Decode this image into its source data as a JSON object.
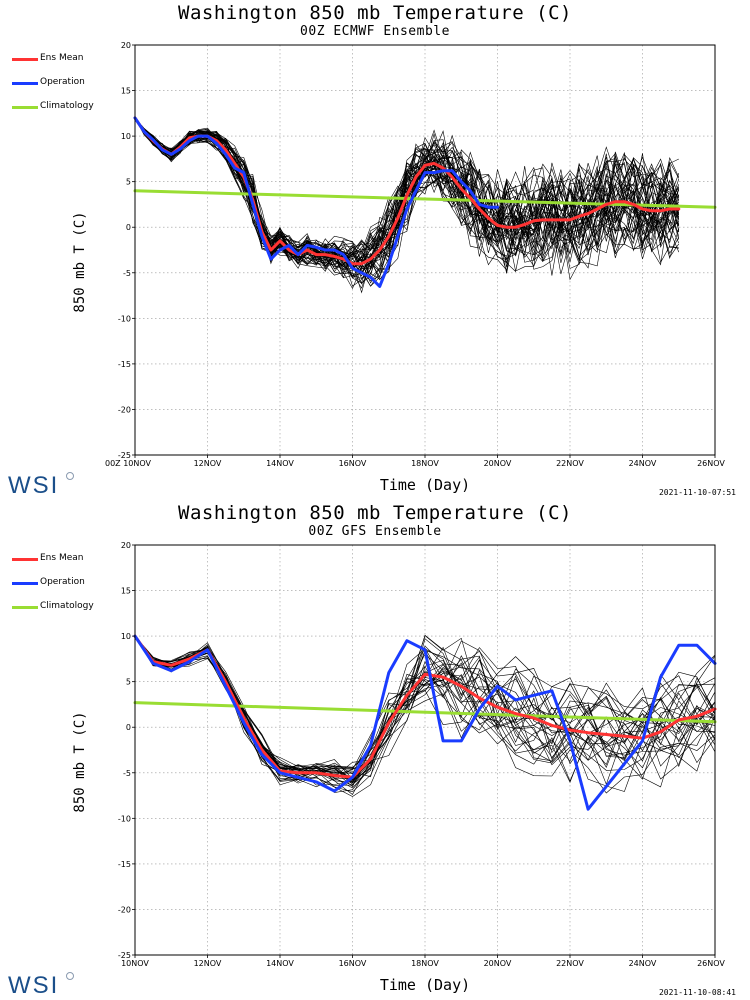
{
  "logo": {
    "text": "WSI"
  },
  "colors": {
    "ens_mean": "#ff3333",
    "operation": "#1a3cff",
    "climatology": "#99dd33",
    "members": "#000000",
    "grid": "#999999"
  },
  "chart_data": [
    {
      "type": "line",
      "title": "Washington 850 mb Temperature (C)",
      "subtitle": "00Z ECMWF Ensemble",
      "xlabel": "Time (Day)",
      "ylabel": "850 mb T (C)",
      "timestamp": "2021-11-10-07:51",
      "xlim": [
        10,
        26
      ],
      "ylim": [
        -25,
        20
      ],
      "grid": true,
      "legend_placement": "left",
      "x_ticks": [
        {
          "x": 10,
          "label": "00Z 10NOV"
        },
        {
          "x": 12,
          "label": "12NOV"
        },
        {
          "x": 14,
          "label": "14NOV"
        },
        {
          "x": 16,
          "label": "16NOV"
        },
        {
          "x": 18,
          "label": "18NOV"
        },
        {
          "x": 20,
          "label": "20NOV"
        },
        {
          "x": 22,
          "label": "22NOV"
        },
        {
          "x": 24,
          "label": "24NOV"
        },
        {
          "x": 26,
          "label": "26NOV"
        }
      ],
      "y_ticks": [
        20,
        15,
        10,
        5,
        0,
        -5,
        -10,
        -15,
        -20,
        -25
      ],
      "legend": [
        "Ens Mean",
        "Operation",
        "Climatology"
      ],
      "members_ensemble": {
        "count": 50,
        "x": [
          10,
          10.25,
          10.5,
          10.75,
          11,
          11.25,
          11.5,
          11.75,
          12,
          12.25,
          12.5,
          12.75,
          13,
          13.25,
          13.5,
          13.75,
          14,
          14.25,
          14.5,
          14.75,
          15,
          15.25,
          15.5,
          15.75,
          16,
          16.25,
          16.5,
          16.75,
          17,
          17.25,
          17.5,
          17.75,
          18,
          18.25,
          18.5,
          18.75,
          19,
          19.25,
          19.5,
          19.75,
          20,
          20.25,
          20.5,
          20.75,
          21,
          21.25,
          21.5,
          21.75,
          22,
          22.25,
          22.5,
          22.75,
          23,
          23.25,
          23.5,
          23.75,
          24,
          24.25,
          24.5,
          24.75,
          25
        ],
        "mean": [
          12,
          10.5,
          9.5,
          8.6,
          8,
          8.8,
          9.8,
          10,
          10,
          9.5,
          8.5,
          7,
          5.5,
          3,
          -0.5,
          -2.5,
          -1.5,
          -2.5,
          -3,
          -2.5,
          -3,
          -3,
          -3.2,
          -3.5,
          -4,
          -4,
          -3.5,
          -2.5,
          -1,
          1,
          3.5,
          5.5,
          6.8,
          7,
          6.5,
          5.5,
          4.2,
          3.2,
          2,
          1,
          0.2,
          0,
          0,
          0.3,
          0.7,
          0.8,
          0.8,
          0.8,
          0.8,
          1.2,
          1.5,
          2,
          2.5,
          2.8,
          2.8,
          2.5,
          2,
          1.8,
          1.8,
          2,
          2
        ],
        "spread": [
          0,
          0.4,
          0.6,
          0.7,
          0.8,
          0.8,
          0.8,
          0.8,
          0.9,
          1.2,
          1.5,
          2,
          2.5,
          3,
          2.5,
          1.8,
          1.6,
          1.6,
          1.6,
          1.8,
          1.8,
          2,
          2.2,
          2.4,
          2.8,
          3.2,
          3.8,
          4.2,
          4.5,
          4.5,
          4.2,
          3.8,
          3.6,
          3.8,
          4,
          4.5,
          5,
          5.5,
          5.8,
          6,
          6,
          6,
          6,
          6,
          6,
          6,
          6,
          6,
          6,
          6,
          6,
          6,
          6,
          6,
          6,
          6,
          6,
          6,
          6,
          6,
          6
        ]
      },
      "series": [
        {
          "name": "Ens Mean",
          "color": "#ff3333",
          "x": [
            10,
            10.25,
            10.5,
            10.75,
            11,
            11.25,
            11.5,
            11.75,
            12,
            12.25,
            12.5,
            12.75,
            13,
            13.25,
            13.5,
            13.75,
            14,
            14.25,
            14.5,
            14.75,
            15,
            15.25,
            15.5,
            15.75,
            16,
            16.25,
            16.5,
            16.75,
            17,
            17.25,
            17.5,
            17.75,
            18,
            18.25,
            18.5,
            18.75,
            19,
            19.25,
            19.5,
            19.75,
            20,
            20.25,
            20.5,
            20.75,
            21,
            21.25,
            21.5,
            21.75,
            22,
            22.25,
            22.5,
            22.75,
            23,
            23.25,
            23.5,
            23.75,
            24,
            24.25,
            24.5,
            24.75,
            25
          ],
          "y": [
            12,
            10.5,
            9.5,
            8.6,
            8,
            8.8,
            9.8,
            10,
            10,
            9.5,
            8.5,
            7,
            5.5,
            3,
            -0.5,
            -2.5,
            -1.5,
            -2.5,
            -3,
            -2.5,
            -3,
            -3,
            -3.2,
            -3.5,
            -4,
            -4,
            -3.5,
            -2.5,
            -1,
            1,
            3.5,
            5.5,
            6.8,
            7,
            6.5,
            5.5,
            4.2,
            3.2,
            2,
            1,
            0.2,
            0,
            0,
            0.3,
            0.7,
            0.8,
            0.8,
            0.8,
            0.8,
            1.2,
            1.5,
            2,
            2.5,
            2.8,
            2.8,
            2.5,
            2,
            1.8,
            1.8,
            2,
            2
          ]
        },
        {
          "name": "Operation",
          "color": "#1a3cff",
          "x": [
            10,
            10.25,
            10.5,
            10.75,
            11,
            11.25,
            11.5,
            11.75,
            12,
            12.25,
            12.5,
            12.75,
            13,
            13.25,
            13.5,
            13.75,
            14,
            14.25,
            14.5,
            14.75,
            15,
            15.25,
            15.5,
            15.75,
            16,
            16.25,
            16.5,
            16.75,
            17,
            17.25,
            17.5,
            17.75,
            18,
            18.25,
            18.5,
            18.75,
            19,
            19.25,
            19.5,
            19.75,
            20
          ],
          "y": [
            12,
            10.5,
            9.6,
            8.5,
            8,
            8.6,
            9.5,
            10,
            10,
            9.2,
            8,
            6.5,
            6,
            2.5,
            -1,
            -3.5,
            -2.5,
            -2,
            -3,
            -2,
            -2.2,
            -2.5,
            -2.5,
            -3,
            -4.5,
            -5,
            -5.5,
            -6.5,
            -4,
            -1,
            2,
            4,
            6,
            6,
            6.2,
            6.2,
            5,
            4,
            2.5,
            2.2,
            2.2
          ]
        },
        {
          "name": "Climatology",
          "color": "#99dd33",
          "x": [
            10,
            26
          ],
          "y": [
            4,
            2.2
          ]
        }
      ]
    },
    {
      "type": "line",
      "title": "Washington 850 mb Temperature (C)",
      "subtitle": "00Z GFS Ensemble",
      "xlabel": "Time (Day)",
      "ylabel": "850 mb T (C)",
      "timestamp": "2021-11-10-08:41",
      "xlim": [
        10,
        26
      ],
      "ylim": [
        -25,
        20
      ],
      "grid": true,
      "legend_placement": "left",
      "x_ticks": [
        {
          "x": 10,
          "label": "10NOV"
        },
        {
          "x": 12,
          "label": "12NOV"
        },
        {
          "x": 14,
          "label": "14NOV"
        },
        {
          "x": 16,
          "label": "16NOV"
        },
        {
          "x": 18,
          "label": "18NOV"
        },
        {
          "x": 20,
          "label": "20NOV"
        },
        {
          "x": 22,
          "label": "22NOV"
        },
        {
          "x": 24,
          "label": "24NOV"
        },
        {
          "x": 26,
          "label": "26NOV"
        }
      ],
      "y_ticks": [
        20,
        15,
        10,
        5,
        0,
        -5,
        -10,
        -15,
        -20,
        -25
      ],
      "legend": [
        "Ens Mean",
        "Operation",
        "Climatology"
      ],
      "members_ensemble": {
        "count": 30,
        "x": [
          10,
          10.5,
          11,
          11.5,
          12,
          12.5,
          13,
          13.5,
          14,
          14.5,
          15,
          15.5,
          16,
          16.5,
          17,
          17.5,
          18,
          18.5,
          19,
          19.5,
          20,
          20.5,
          21,
          21.5,
          22,
          22.5,
          23,
          23.5,
          24,
          24.5,
          25,
          25.5,
          26
        ],
        "mean": [
          10,
          7.2,
          6.8,
          7.5,
          8.5,
          5,
          1,
          -2.5,
          -4.8,
          -5,
          -5,
          -5.3,
          -5.5,
          -3.5,
          0.5,
          3.5,
          5.8,
          5.5,
          4.5,
          3.2,
          2.2,
          1.5,
          1,
          0.2,
          -0.3,
          -0.6,
          -0.8,
          -1,
          -1.2,
          -0.5,
          0.8,
          1.2,
          2
        ],
        "spread": [
          0,
          0.5,
          0.7,
          0.8,
          0.9,
          1.2,
          1.5,
          1.6,
          1.6,
          1.6,
          1.6,
          1.8,
          2,
          3,
          4,
          4.5,
          4.5,
          5,
          5.5,
          6,
          6,
          6,
          6,
          6,
          6,
          6,
          6,
          6,
          6,
          6,
          6,
          6,
          6
        ]
      },
      "series": [
        {
          "name": "Ens Mean",
          "color": "#ff3333",
          "x": [
            10,
            10.5,
            11,
            11.5,
            12,
            12.5,
            13,
            13.5,
            14,
            14.5,
            15,
            15.5,
            16,
            16.5,
            17,
            17.5,
            18,
            18.5,
            19,
            19.5,
            20,
            20.5,
            21,
            21.5,
            22,
            22.5,
            23,
            23.5,
            24,
            24.5,
            25,
            25.5,
            26
          ],
          "y": [
            10,
            7.2,
            6.8,
            7.5,
            8.5,
            5,
            1,
            -2.5,
            -4.8,
            -5,
            -5,
            -5.3,
            -5.5,
            -3.5,
            0.5,
            3.5,
            5.8,
            5.5,
            4.5,
            3.2,
            2.2,
            1.5,
            1,
            0.2,
            -0.3,
            -0.6,
            -0.8,
            -1,
            -1.2,
            -0.5,
            0.8,
            1.2,
            2
          ]
        },
        {
          "name": "Operation",
          "color": "#1a3cff",
          "x": [
            10,
            10.5,
            11,
            11.5,
            12,
            12.5,
            13,
            13.5,
            14,
            14.5,
            15,
            15.5,
            16,
            16.5,
            17,
            17.5,
            18,
            18.5,
            19,
            19.5,
            20,
            20.5,
            21,
            21.5,
            22,
            22.5,
            23,
            23.5,
            24,
            24.5,
            25,
            25.5,
            26
          ],
          "y": [
            10,
            7,
            6.2,
            7.2,
            8.5,
            4.5,
            0.5,
            -3,
            -5,
            -5.5,
            -6,
            -7,
            -5.5,
            -2,
            6,
            9.5,
            8.5,
            -1.5,
            -1.5,
            2,
            4.5,
            3,
            3.5,
            4,
            -1.5,
            -9,
            -6.5,
            -4,
            -1.5,
            5.5,
            9,
            9,
            7
          ]
        },
        {
          "name": "Climatology",
          "color": "#99dd33",
          "x": [
            10,
            26
          ],
          "y": [
            2.7,
            0.6
          ]
        }
      ]
    }
  ]
}
